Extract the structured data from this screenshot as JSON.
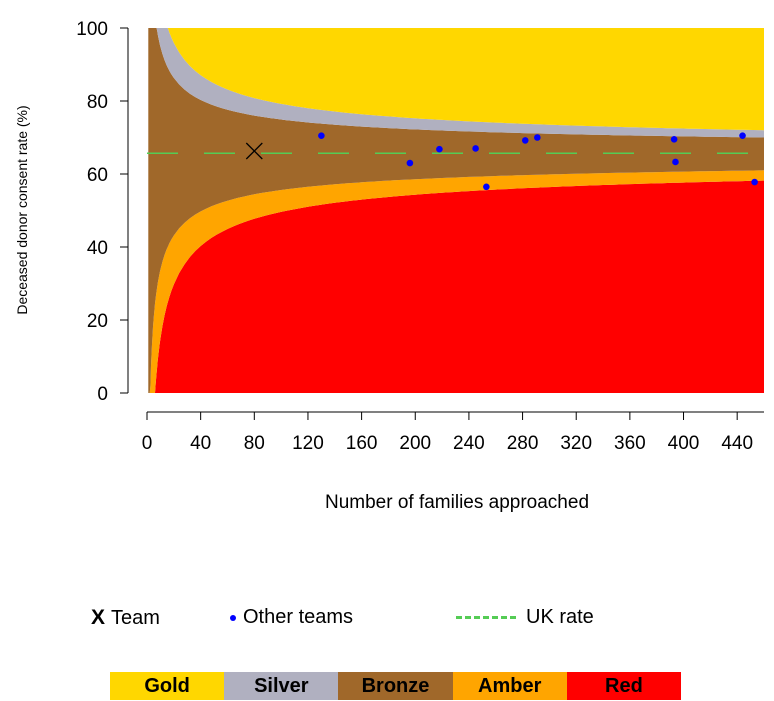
{
  "chart_data": {
    "type": "scatter",
    "title": "",
    "xlabel": "Number of families approached",
    "ylabel": "Deceased donor consent rate (%)",
    "xlim": [
      0,
      460
    ],
    "ylim": [
      0,
      100
    ],
    "xticks": [
      "0",
      "40",
      "80",
      "120",
      "160",
      "200",
      "240",
      "280",
      "320",
      "360",
      "400",
      "440"
    ],
    "yticks": [
      "0",
      "20",
      "40",
      "60",
      "80",
      "100"
    ],
    "uk_rate": 65.7,
    "team": {
      "x": 80,
      "y": 66.3
    },
    "other_teams": [
      {
        "x": 130,
        "y": 70.5
      },
      {
        "x": 196,
        "y": 63
      },
      {
        "x": 218,
        "y": 66.8
      },
      {
        "x": 245,
        "y": 67
      },
      {
        "x": 253,
        "y": 56.5
      },
      {
        "x": 282,
        "y": 69.2
      },
      {
        "x": 291,
        "y": 70
      },
      {
        "x": 393,
        "y": 69.5
      },
      {
        "x": 394,
        "y": 63.3
      },
      {
        "x": 444,
        "y": 70.5
      },
      {
        "x": 453,
        "y": 57.8
      }
    ],
    "funnel_limits": {
      "red_amber": 58.2,
      "amber_bronze": 61.0,
      "bronze_silver": 70.0,
      "silver_gold": 72.0
    },
    "band_colors": {
      "gold": "#ffd700",
      "silver": "#b0b0c0",
      "bronze": "#a0682a",
      "amber": "#ffa500",
      "red": "#ff0000",
      "uk_line": "#55cc55",
      "other_teams": "#0000ff"
    }
  },
  "legend": {
    "team_marker": "X",
    "team_label": "Team",
    "other_teams_label": "Other teams",
    "uk_rate_label": "UK rate"
  },
  "bands": [
    "Gold",
    "Silver",
    "Bronze",
    "Amber",
    "Red"
  ]
}
